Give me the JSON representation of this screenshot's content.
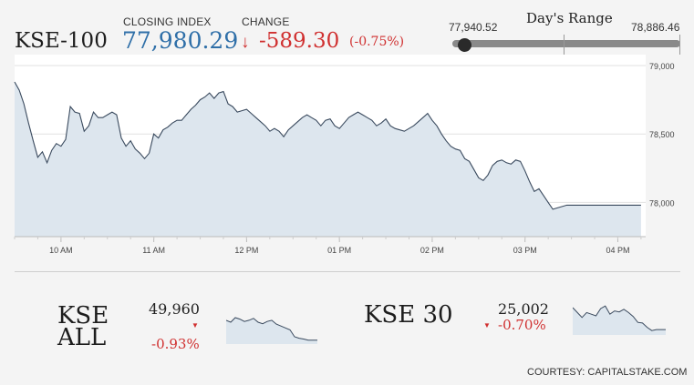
{
  "header": {
    "index_name": "KSE-100",
    "closing_label": "CLOSING INDEX",
    "closing_value": "77,980.29",
    "change_label": "CHANGE",
    "change_arrow": "↓",
    "change_value": "-589.30",
    "change_pct": "(-0.75%)"
  },
  "range": {
    "title": "Day's Range",
    "low": "77,940.52",
    "high": "78,886.46",
    "position_fraction": 0.04
  },
  "colors": {
    "negative": "#d03030",
    "closing_value": "#2f6fa8",
    "line": "#3a4a5e",
    "fill": "#dde6ee"
  },
  "chart_data": [
    {
      "type": "line",
      "title": "",
      "ylim": [
        77750,
        79000
      ],
      "y_ticks": [
        "79,000",
        "78,500",
        "78,000"
      ],
      "x_ticks": [
        "10 AM",
        "11 AM",
        "12 PM",
        "01 PM",
        "02 PM",
        "03 PM",
        "04 PM"
      ],
      "x_hours_range": [
        9.5,
        16.3
      ],
      "grid": true,
      "points": [
        [
          9.5,
          78880
        ],
        [
          9.55,
          78820
        ],
        [
          9.6,
          78720
        ],
        [
          9.65,
          78580
        ],
        [
          9.7,
          78450
        ],
        [
          9.75,
          78330
        ],
        [
          9.8,
          78370
        ],
        [
          9.85,
          78290
        ],
        [
          9.9,
          78380
        ],
        [
          9.95,
          78430
        ],
        [
          10.0,
          78410
        ],
        [
          10.05,
          78460
        ],
        [
          10.1,
          78700
        ],
        [
          10.15,
          78660
        ],
        [
          10.2,
          78650
        ],
        [
          10.25,
          78520
        ],
        [
          10.3,
          78560
        ],
        [
          10.35,
          78660
        ],
        [
          10.4,
          78620
        ],
        [
          10.45,
          78620
        ],
        [
          10.5,
          78640
        ],
        [
          10.55,
          78660
        ],
        [
          10.6,
          78640
        ],
        [
          10.65,
          78470
        ],
        [
          10.7,
          78410
        ],
        [
          10.75,
          78450
        ],
        [
          10.8,
          78390
        ],
        [
          10.85,
          78360
        ],
        [
          10.9,
          78320
        ],
        [
          10.95,
          78360
        ],
        [
          11.0,
          78500
        ],
        [
          11.05,
          78470
        ],
        [
          11.1,
          78530
        ],
        [
          11.15,
          78550
        ],
        [
          11.2,
          78580
        ],
        [
          11.25,
          78600
        ],
        [
          11.3,
          78600
        ],
        [
          11.35,
          78640
        ],
        [
          11.4,
          78680
        ],
        [
          11.45,
          78710
        ],
        [
          11.5,
          78750
        ],
        [
          11.55,
          78770
        ],
        [
          11.6,
          78800
        ],
        [
          11.65,
          78760
        ],
        [
          11.7,
          78800
        ],
        [
          11.75,
          78810
        ],
        [
          11.8,
          78720
        ],
        [
          11.85,
          78700
        ],
        [
          11.9,
          78660
        ],
        [
          11.95,
          78670
        ],
        [
          12.0,
          78680
        ],
        [
          12.05,
          78650
        ],
        [
          12.1,
          78620
        ],
        [
          12.15,
          78590
        ],
        [
          12.2,
          78560
        ],
        [
          12.25,
          78520
        ],
        [
          12.3,
          78540
        ],
        [
          12.35,
          78520
        ],
        [
          12.4,
          78480
        ],
        [
          12.45,
          78530
        ],
        [
          12.5,
          78560
        ],
        [
          12.55,
          78590
        ],
        [
          12.6,
          78620
        ],
        [
          12.65,
          78640
        ],
        [
          12.7,
          78620
        ],
        [
          12.75,
          78600
        ],
        [
          12.8,
          78560
        ],
        [
          12.85,
          78600
        ],
        [
          12.9,
          78610
        ],
        [
          12.95,
          78560
        ],
        [
          13.0,
          78540
        ],
        [
          13.05,
          78580
        ],
        [
          13.1,
          78620
        ],
        [
          13.15,
          78640
        ],
        [
          13.2,
          78660
        ],
        [
          13.25,
          78640
        ],
        [
          13.3,
          78620
        ],
        [
          13.35,
          78600
        ],
        [
          13.4,
          78560
        ],
        [
          13.45,
          78580
        ],
        [
          13.5,
          78610
        ],
        [
          13.55,
          78560
        ],
        [
          13.6,
          78540
        ],
        [
          13.65,
          78530
        ],
        [
          13.7,
          78520
        ],
        [
          13.75,
          78540
        ],
        [
          13.8,
          78560
        ],
        [
          13.85,
          78590
        ],
        [
          13.9,
          78620
        ],
        [
          13.95,
          78650
        ],
        [
          14.0,
          78600
        ],
        [
          14.05,
          78560
        ],
        [
          14.1,
          78500
        ],
        [
          14.15,
          78450
        ],
        [
          14.2,
          78410
        ],
        [
          14.25,
          78390
        ],
        [
          14.3,
          78380
        ],
        [
          14.35,
          78320
        ],
        [
          14.4,
          78300
        ],
        [
          14.45,
          78240
        ],
        [
          14.5,
          78180
        ],
        [
          14.55,
          78160
        ],
        [
          14.6,
          78200
        ],
        [
          14.65,
          78270
        ],
        [
          14.7,
          78300
        ],
        [
          14.75,
          78310
        ],
        [
          14.8,
          78290
        ],
        [
          14.85,
          78280
        ],
        [
          14.9,
          78310
        ],
        [
          14.95,
          78300
        ],
        [
          15.0,
          78230
        ],
        [
          15.05,
          78150
        ],
        [
          15.1,
          78080
        ],
        [
          15.15,
          78100
        ],
        [
          15.2,
          78050
        ],
        [
          15.25,
          78000
        ],
        [
          15.3,
          77950
        ],
        [
          15.35,
          77960
        ],
        [
          15.45,
          77980
        ],
        [
          16.25,
          77980
        ]
      ]
    },
    {
      "type": "line",
      "title": "KSE ALL",
      "value": "49,960",
      "change_pct": "-0.93%",
      "points": [
        [
          0,
          0.55
        ],
        [
          0.05,
          0.5
        ],
        [
          0.1,
          0.62
        ],
        [
          0.15,
          0.58
        ],
        [
          0.2,
          0.52
        ],
        [
          0.25,
          0.55
        ],
        [
          0.3,
          0.6
        ],
        [
          0.35,
          0.5
        ],
        [
          0.4,
          0.46
        ],
        [
          0.45,
          0.52
        ],
        [
          0.5,
          0.55
        ],
        [
          0.55,
          0.45
        ],
        [
          0.6,
          0.4
        ],
        [
          0.65,
          0.35
        ],
        [
          0.7,
          0.3
        ],
        [
          0.75,
          0.12
        ],
        [
          0.8,
          0.08
        ],
        [
          0.85,
          0.06
        ],
        [
          0.9,
          0.03
        ],
        [
          1,
          0.03
        ]
      ]
    },
    {
      "type": "line",
      "title": "KSE 30",
      "value": "25,002",
      "change_pct": "-0.70%",
      "points": [
        [
          0,
          0.75
        ],
        [
          0.05,
          0.6
        ],
        [
          0.1,
          0.45
        ],
        [
          0.15,
          0.6
        ],
        [
          0.2,
          0.55
        ],
        [
          0.25,
          0.5
        ],
        [
          0.3,
          0.72
        ],
        [
          0.35,
          0.8
        ],
        [
          0.4,
          0.55
        ],
        [
          0.45,
          0.65
        ],
        [
          0.5,
          0.62
        ],
        [
          0.55,
          0.7
        ],
        [
          0.6,
          0.6
        ],
        [
          0.65,
          0.48
        ],
        [
          0.7,
          0.3
        ],
        [
          0.75,
          0.28
        ],
        [
          0.8,
          0.15
        ],
        [
          0.85,
          0.05
        ],
        [
          0.9,
          0.08
        ],
        [
          1,
          0.08
        ]
      ]
    }
  ],
  "footer": {
    "courtesy": "COURTESY: CAPITALSTAKE.COM"
  }
}
